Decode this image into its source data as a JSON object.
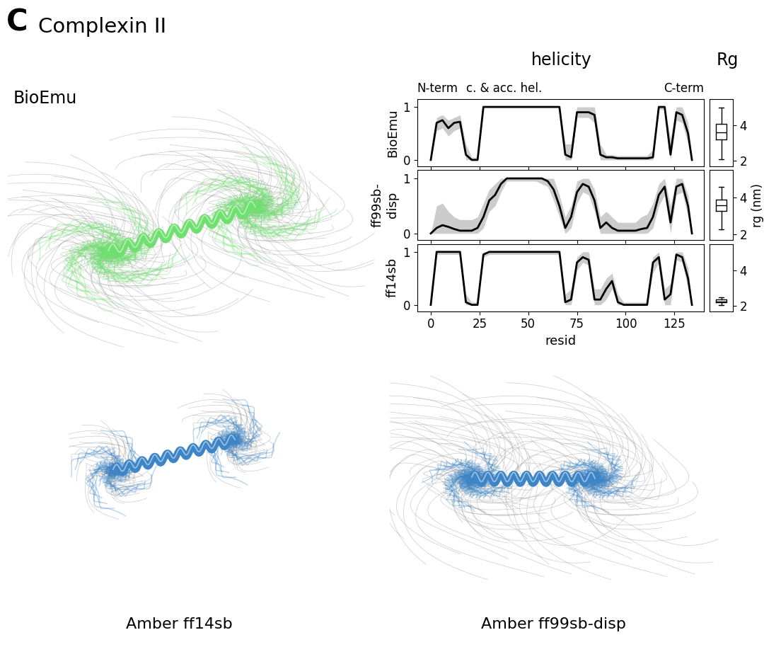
{
  "chart_data": {
    "type": "line",
    "panel_label": "C",
    "title": "Complexin II",
    "subtitle": "helicity",
    "header_labels": [
      "N-term",
      "c. & acc. hel.",
      "C-term"
    ],
    "xlabel": "resid",
    "xlim": [
      -7,
      140
    ],
    "xticks": [
      0,
      25,
      50,
      75,
      100,
      125
    ],
    "ylim": [
      -0.12,
      1.15
    ],
    "yticks": [
      0,
      1
    ],
    "grid": false,
    "x": [
      0,
      3,
      6,
      9,
      12,
      15,
      18,
      21,
      24,
      27,
      30,
      33,
      36,
      39,
      42,
      45,
      48,
      51,
      54,
      57,
      60,
      63,
      66,
      69,
      72,
      75,
      78,
      81,
      84,
      87,
      90,
      93,
      96,
      99,
      102,
      105,
      108,
      111,
      114,
      117,
      120,
      123,
      126,
      129,
      132,
      134
    ],
    "series": [
      {
        "name": "BioEmu",
        "color": "#000000",
        "band_color": "#cccccc",
        "values": [
          0,
          0.7,
          0.75,
          0.6,
          0.7,
          0.72,
          0.1,
          0,
          0,
          1,
          1,
          1,
          1,
          1,
          1,
          1,
          1,
          1,
          1,
          1,
          1,
          1,
          1,
          0.1,
          0.05,
          0.9,
          0.9,
          0.9,
          0.85,
          0.1,
          0.05,
          0.05,
          0.03,
          0.03,
          0.03,
          0.03,
          0.03,
          0.03,
          0.05,
          1,
          1,
          0.1,
          0.9,
          0.85,
          0.5,
          0
        ],
        "band_low": [
          0,
          0.55,
          0.6,
          0.45,
          0.55,
          0.6,
          0,
          0,
          0,
          1,
          1,
          1,
          1,
          1,
          1,
          1,
          1,
          1,
          1,
          1,
          1,
          1,
          1,
          0,
          0,
          0.8,
          0.8,
          0.8,
          0.7,
          0,
          0,
          0,
          0,
          0,
          0,
          0,
          0,
          0,
          0,
          0.95,
          0.95,
          0,
          0.75,
          0.7,
          0.3,
          0
        ],
        "band_high": [
          0,
          0.8,
          0.85,
          0.75,
          0.8,
          0.85,
          0.3,
          0.05,
          0.05,
          1,
          1,
          1,
          1,
          1,
          1,
          1,
          1,
          1,
          1,
          1,
          1,
          1,
          1,
          0.3,
          0.3,
          1,
          1,
          1,
          1,
          0.3,
          0.1,
          0.1,
          0.08,
          0.08,
          0.08,
          0.08,
          0.08,
          0.08,
          0.2,
          1,
          1,
          0.4,
          1,
          1,
          0.7,
          0
        ]
      },
      {
        "name": "ff99sb-\ndisp",
        "color": "#000000",
        "band_color": "#cccccc",
        "values": [
          0,
          0.1,
          0.15,
          0.12,
          0.08,
          0.05,
          0.05,
          0.05,
          0.1,
          0.3,
          0.6,
          0.7,
          0.9,
          1,
          1,
          1,
          1,
          1,
          1,
          1,
          0.95,
          0.8,
          0.5,
          0.1,
          0.3,
          0.75,
          0.9,
          0.85,
          0.6,
          0.1,
          0.2,
          0.1,
          0.05,
          0.05,
          0.05,
          0.05,
          0.08,
          0.1,
          0.3,
          0.7,
          0.85,
          0.2,
          0.85,
          0.9,
          0.5,
          0
        ],
        "band_low": [
          0,
          0,
          0,
          0,
          0,
          0,
          0,
          0,
          0,
          0.1,
          0.4,
          0.5,
          0.75,
          0.95,
          0.95,
          0.95,
          0.95,
          0.95,
          0.95,
          0.9,
          0.85,
          0.6,
          0.3,
          0,
          0.1,
          0.55,
          0.75,
          0.7,
          0.4,
          0,
          0,
          0,
          0,
          0,
          0,
          0,
          0,
          0,
          0.1,
          0.5,
          0.7,
          0,
          0.7,
          0.75,
          0.3,
          0
        ],
        "band_high": [
          0,
          0.5,
          0.55,
          0.4,
          0.3,
          0.25,
          0.25,
          0.25,
          0.3,
          0.55,
          0.8,
          0.9,
          1,
          1,
          1,
          1,
          1,
          1,
          1,
          1,
          1,
          1,
          0.7,
          0.3,
          0.5,
          0.95,
          1,
          1,
          0.8,
          0.3,
          0.4,
          0.3,
          0.2,
          0.2,
          0.2,
          0.2,
          0.3,
          0.35,
          0.55,
          0.9,
          1,
          0.5,
          1,
          1,
          0.7,
          0
        ]
      },
      {
        "name": "ff14sb",
        "color": "#000000",
        "band_color": "#cccccc",
        "values": [
          0,
          1,
          1,
          1,
          1,
          1,
          0.05,
          0,
          0,
          0.95,
          1,
          1,
          1,
          1,
          1,
          1,
          1,
          1,
          1,
          1,
          1,
          1,
          1,
          0.05,
          0.1,
          0.8,
          0.9,
          0.85,
          0.1,
          0.1,
          0.3,
          0.45,
          0.05,
          0,
          0,
          0,
          0,
          0,
          0.8,
          0.9,
          0.1,
          0.2,
          0.95,
          0.9,
          0.5,
          0
        ],
        "band_low": [
          0,
          0.95,
          0.95,
          0.95,
          0.95,
          0.95,
          0,
          0,
          0,
          0.9,
          0.95,
          0.95,
          0.95,
          0.95,
          0.95,
          0.95,
          0.95,
          0.95,
          0.95,
          0.95,
          0.95,
          0.95,
          0.95,
          0,
          0,
          0.65,
          0.8,
          0.75,
          0,
          0,
          0.1,
          0.3,
          0,
          0,
          0,
          0,
          0,
          0,
          0.6,
          0.8,
          0,
          0,
          0.85,
          0.8,
          0.3,
          0
        ],
        "band_high": [
          0,
          1,
          1,
          1,
          1,
          1,
          0.2,
          0.05,
          0.05,
          1,
          1,
          1,
          1,
          1,
          1,
          1,
          1,
          1,
          1,
          1,
          1,
          1,
          1,
          0.2,
          0.3,
          0.9,
          1,
          1,
          0.3,
          0.3,
          0.5,
          0.6,
          0.2,
          0.05,
          0.05,
          0.05,
          0.05,
          0.05,
          0.9,
          1,
          0.3,
          0.4,
          1,
          1,
          0.7,
          0
        ]
      }
    ],
    "rg": {
      "title": "Rg",
      "ylabel": "rg (nm)",
      "ylim": [
        1.7,
        5.5
      ],
      "yticks": [
        2,
        4
      ],
      "boxes": [
        {
          "name": "BioEmu",
          "whislo": 2.1,
          "q1": 3.2,
          "med": 3.6,
          "q3": 4.1,
          "whishi": 5.0
        },
        {
          "name": "ff99sb-disp",
          "whislo": 2.3,
          "q1": 3.3,
          "med": 3.6,
          "q3": 3.9,
          "whishi": 4.6
        },
        {
          "name": "ff14sb",
          "whislo": 2.05,
          "q1": 2.2,
          "med": 2.25,
          "q3": 2.35,
          "whishi": 2.5
        }
      ]
    },
    "structures": [
      {
        "name": "BioEmu",
        "color": "#6fe06f"
      },
      {
        "name": "Amber ff14sb",
        "color": "#3d85c6"
      },
      {
        "name": "Amber ff99sb-disp",
        "color": "#3d85c6"
      }
    ]
  }
}
